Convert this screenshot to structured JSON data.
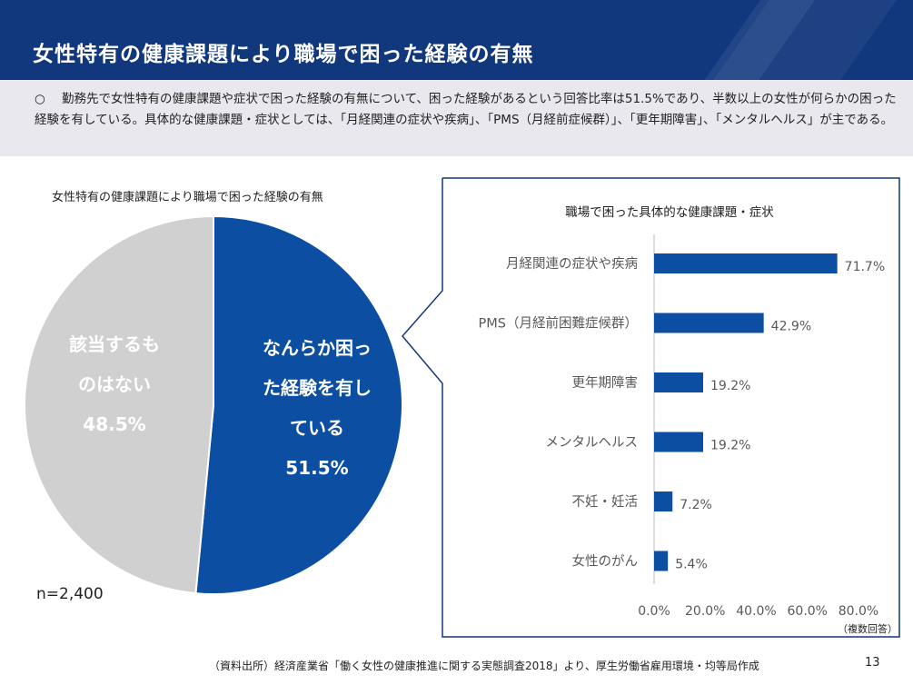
{
  "title": "女性特有の健康課題により職場で困った経験の有無",
  "summary": {
    "bullet": "○",
    "text": "勤務先で女性特有の健康課題や症状で困った経験の有無について、困った経験があるという回答比率は51.5%であり、半数以上の女性が何らかの困った経験を有している。具体的な健康課題・症状としては、「月経関連の症状や疾病」、「PMS（月経前症候群）」、「更年期障害」、「メンタルヘルス」が主である。"
  },
  "colors": {
    "header_bg": "#11377d",
    "summary_bg": "#e9e8ef",
    "accent_blue": "#0b4ea2",
    "gray": "#d0d0d0"
  },
  "chart_data": [
    {
      "type": "pie",
      "title": "女性特有の健康課題により職場で困った経験の有無",
      "slices": [
        {
          "label_lines": [
            "なんらか困っ",
            "た経験を有し",
            "ている"
          ],
          "value_label": "51.5%",
          "value": 51.5,
          "color": "#0b4ea2"
        },
        {
          "label_lines": [
            "該当するも",
            "のはない"
          ],
          "value_label": "48.5%",
          "value": 48.5,
          "color": "#d0d0d0"
        }
      ],
      "note": "n=2,400"
    },
    {
      "type": "bar",
      "orientation": "horizontal",
      "title": "職場で困った具体的な健康課題・症状",
      "categories": [
        "月経関連の症状や疾病",
        "PMS（月経前困難症候群）",
        "更年期障害",
        "メンタルヘルス",
        "不妊・妊活",
        "女性のがん"
      ],
      "values": [
        71.7,
        42.9,
        19.2,
        19.2,
        7.2,
        5.4
      ],
      "value_labels": [
        "71.7%",
        "42.9%",
        "19.2%",
        "19.2%",
        "7.2%",
        "5.4%"
      ],
      "xlim": [
        0,
        80
      ],
      "xticks": [
        "0.0%",
        "20.0%",
        "40.0%",
        "60.0%",
        "80.0%"
      ],
      "color": "#0b4ea2",
      "note": "（複数回答）"
    }
  ],
  "footer": {
    "source": "（資料出所）経済産業省「働く女性の健康推進に関する実態調査2018」より、厚生労働省雇用環境・均等局作成",
    "page": "13"
  }
}
